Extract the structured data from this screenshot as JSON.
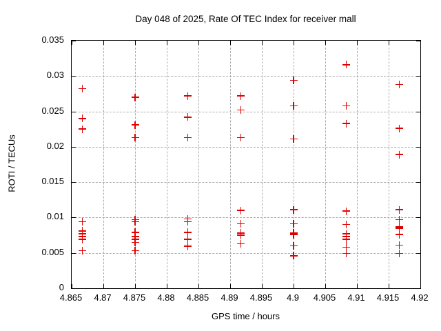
{
  "colors": {
    "marker": "#e00000",
    "grid": "#aaaaaa",
    "axis": "#000000",
    "background": "#ffffff",
    "text": "#000000"
  },
  "chart_data": {
    "type": "scatter",
    "title": "Day 048 of 2025, Rate Of TEC Index for receiver mall",
    "xlabel": "GPS time / hours",
    "ylabel": "ROTI / TECUs",
    "xlim": [
      4.865,
      4.92
    ],
    "ylim": [
      0,
      0.035
    ],
    "grid": true,
    "legend": "none",
    "marker": "plus",
    "xticks": [
      {
        "value": 4.865,
        "label": "4.865"
      },
      {
        "value": 4.87,
        "label": "4.87"
      },
      {
        "value": 4.875,
        "label": "4.875"
      },
      {
        "value": 4.88,
        "label": "4.88"
      },
      {
        "value": 4.885,
        "label": "4.885"
      },
      {
        "value": 4.89,
        "label": "4.89"
      },
      {
        "value": 4.895,
        "label": "4.895"
      },
      {
        "value": 4.9,
        "label": "4.9"
      },
      {
        "value": 4.905,
        "label": "4.905"
      },
      {
        "value": 4.91,
        "label": "4.91"
      },
      {
        "value": 4.915,
        "label": "4.915"
      },
      {
        "value": 4.92,
        "label": "4.92"
      }
    ],
    "yticks": [
      {
        "value": 0,
        "label": "0"
      },
      {
        "value": 0.005,
        "label": "0.005"
      },
      {
        "value": 0.01,
        "label": "0.01"
      },
      {
        "value": 0.015,
        "label": "0.015"
      },
      {
        "value": 0.02,
        "label": "0.02"
      },
      {
        "value": 0.025,
        "label": "0.025"
      },
      {
        "value": 0.03,
        "label": "0.03"
      },
      {
        "value": 0.035,
        "label": "0.035"
      }
    ],
    "series": [
      {
        "name": "ROTI",
        "color": "#e00000",
        "clusters": [
          {
            "x": 4.8667,
            "y": [
              0.0282,
              0.024,
              0.0225,
              0.0094,
              0.0081,
              0.0077,
              0.0073,
              0.0069,
              0.0053
            ]
          },
          {
            "x": 4.875,
            "y": [
              0.027,
              0.0231,
              0.0213,
              0.0097,
              0.0094,
              0.0079,
              0.0073,
              0.0069,
              0.0065,
              0.0053
            ]
          },
          {
            "x": 4.8833,
            "y": [
              0.0272,
              0.0242,
              0.0213,
              0.0098,
              0.0094,
              0.0079,
              0.0069,
              0.0061,
              0.0059
            ]
          },
          {
            "x": 4.8917,
            "y": [
              0.0272,
              0.0252,
              0.0213,
              0.011,
              0.0091,
              0.0078,
              0.0075,
              0.0063
            ]
          },
          {
            "x": 4.9,
            "y": [
              0.0294,
              0.0258,
              0.0211,
              0.0111,
              0.0091,
              0.0078,
              0.0076,
              0.006,
              0.0046
            ]
          },
          {
            "x": 4.9083,
            "y": [
              0.0316,
              0.0258,
              0.0233,
              0.0109,
              0.009,
              0.0077,
              0.0073,
              0.0069,
              0.0058,
              0.0049
            ]
          },
          {
            "x": 4.9167,
            "y": [
              0.0288,
              0.0226,
              0.0189,
              0.0111,
              0.0097,
              0.0087,
              0.0085,
              0.0076,
              0.0061,
              0.0049
            ]
          }
        ]
      }
    ]
  }
}
